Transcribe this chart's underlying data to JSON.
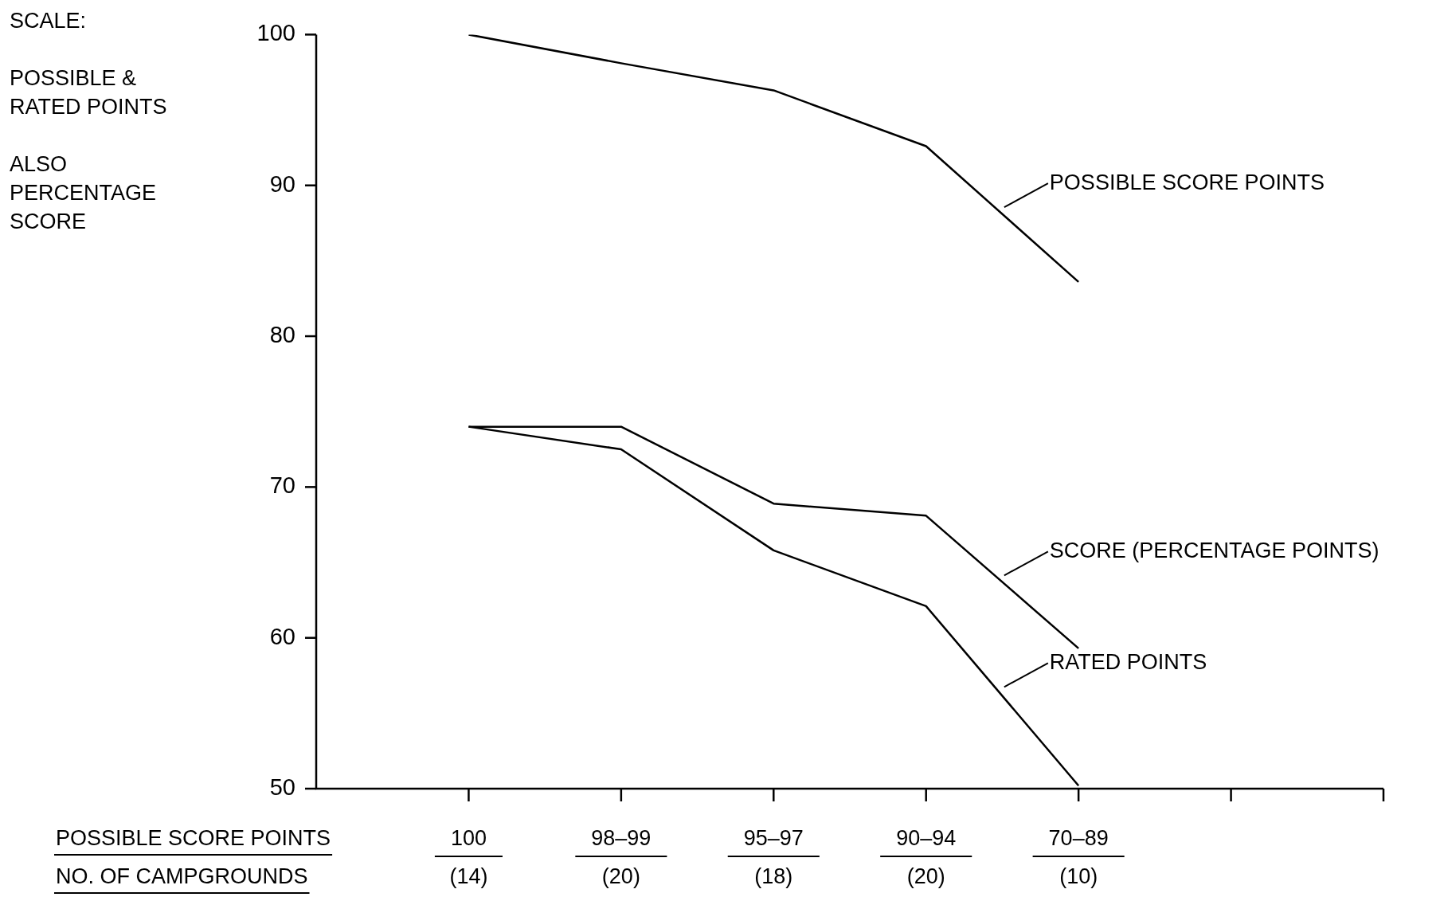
{
  "chart_data": {
    "type": "line",
    "ylabel": "SCALE:\n\nPOSSIBLE & RATED POINTS\n\nALSO PERCENTAGE SCORE",
    "categories": [
      null,
      "100\n(14)",
      "98–99\n(20)",
      "95–97\n(18)",
      "90–94\n(20)",
      "70–89\n(10)",
      null,
      null
    ],
    "series": [
      {
        "name": "POSSIBLE SCORE POINTS",
        "color": "#000000",
        "values": [
          null,
          100,
          98.1,
          96.3,
          92.6,
          83.6,
          null,
          null
        ]
      },
      {
        "name": "SCORE (PERCENTAGE POINTS)",
        "color": "#000000",
        "values": [
          null,
          74,
          74,
          68.9,
          68.1,
          59.3,
          null,
          null
        ]
      },
      {
        "name": "RATED POINTS",
        "color": "#000000",
        "values": [
          null,
          74,
          72.5,
          65.8,
          62.1,
          50.2,
          null,
          null
        ]
      }
    ],
    "annotations": [
      "POSSIBLE SCORE POINTS",
      "NO. OF CAMPGROUNDS"
    ],
    "ylim": [
      50,
      100
    ],
    "yticks": [
      50,
      60,
      70,
      80,
      90,
      100
    ],
    "grid": false,
    "legend": "right",
    "marker": "none"
  }
}
